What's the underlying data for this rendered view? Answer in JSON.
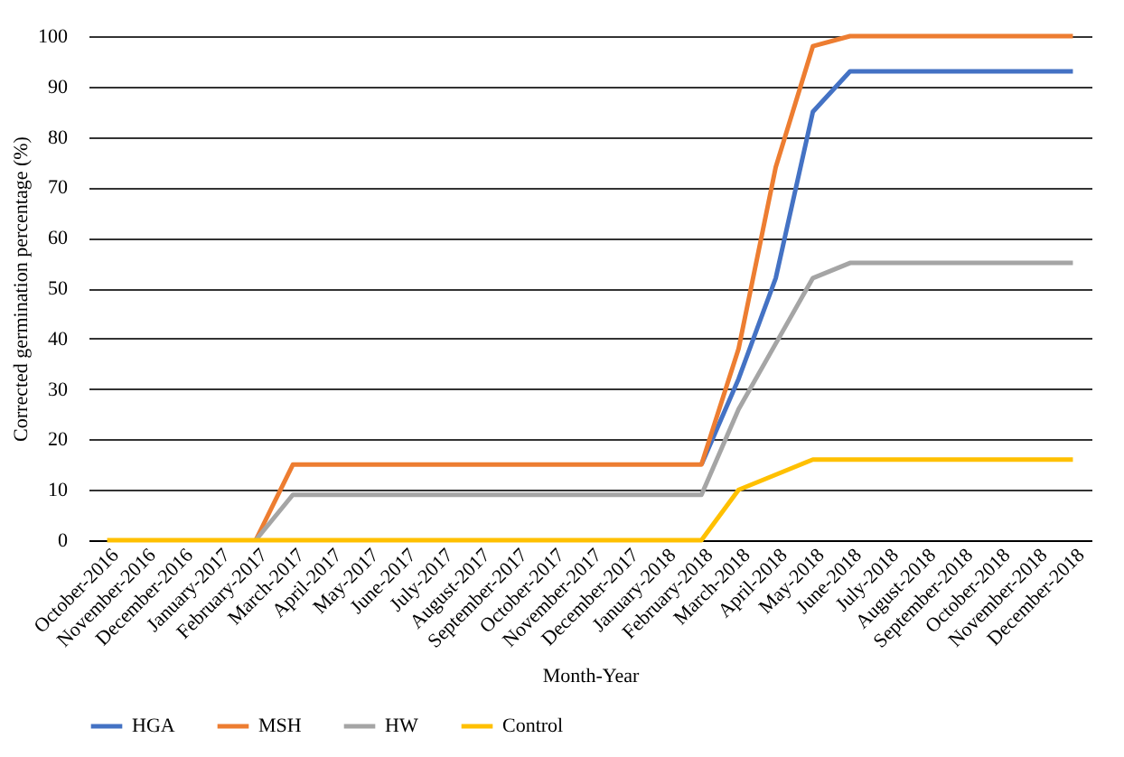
{
  "chart_data": {
    "type": "line",
    "xlabel": "Month-Year",
    "ylabel": "Corrected germination percentage (%)",
    "categories": [
      "October-2016",
      "November-2016",
      "December-2016",
      "January-2017",
      "February-2017",
      "March-2017",
      "April-2017",
      "May-2017",
      "June-2017",
      "July-2017",
      "August-2017",
      "September-2017",
      "October-2017",
      "November-2017",
      "December-2017",
      "January-2018",
      "February-2018",
      "March-2018",
      "April-2018",
      "May-2018",
      "June-2018",
      "July-2018",
      "August-2018",
      "September-2018",
      "October-2018",
      "November-2018",
      "December-2018"
    ],
    "series": [
      {
        "name": "HGA",
        "color": "#4472c4",
        "values": [
          null,
          null,
          null,
          null,
          null,
          null,
          null,
          null,
          null,
          null,
          null,
          null,
          null,
          null,
          null,
          null,
          15,
          32,
          52,
          85,
          93,
          93,
          93,
          93,
          93,
          93,
          93
        ]
      },
      {
        "name": "MSH",
        "color": "#ed7d31",
        "values": [
          null,
          null,
          null,
          null,
          0,
          15,
          15,
          15,
          15,
          15,
          15,
          15,
          15,
          15,
          15,
          15,
          15,
          38,
          74,
          98,
          100,
          100,
          100,
          100,
          100,
          100,
          100
        ]
      },
      {
        "name": "HW",
        "color": "#a5a5a5",
        "values": [
          null,
          null,
          null,
          null,
          0,
          9,
          9,
          9,
          9,
          9,
          9,
          9,
          9,
          9,
          9,
          9,
          9,
          26,
          39,
          52,
          55,
          55,
          55,
          55,
          55,
          55,
          55
        ]
      },
      {
        "name": "Control",
        "color": "#ffc000",
        "values": [
          0,
          0,
          0,
          0,
          0,
          0,
          0,
          0,
          0,
          0,
          0,
          0,
          0,
          0,
          0,
          0,
          0,
          10,
          13,
          16,
          16,
          16,
          16,
          16,
          16,
          16,
          16
        ]
      }
    ],
    "ylim": [
      0,
      100
    ],
    "yticks": [
      0,
      10,
      20,
      30,
      40,
      50,
      60,
      70,
      80,
      90,
      100
    ],
    "grid": "y",
    "legend": "bottom",
    "line_style": "solid"
  }
}
